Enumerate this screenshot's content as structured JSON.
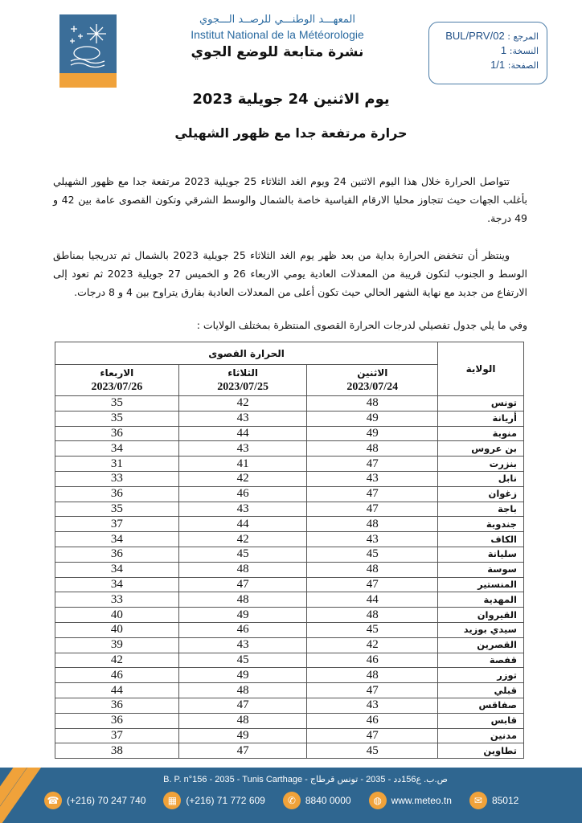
{
  "header": {
    "org_ar": "المعهـــد الوطنـــي للرصــد الـــجوي",
    "org_fr": "Institut National de la Météorologie",
    "bulletin_title": "نشرة متابعة للوضع الجوي",
    "logo_caption_ar": "المعهد الوطني للرصد الجوي",
    "logo_caption_fr": "Institut National de la Météorologie",
    "reference": {
      "label": "المرجع :",
      "value": "BUL/PRV/02"
    },
    "version": {
      "label": "النسخة:",
      "value": "1"
    },
    "page": {
      "label": "الصفحة:",
      "value": "1/1"
    }
  },
  "title_date": "يوم الاثنين 24 جويلية 2023",
  "subtitle": "حرارة مرتفعة جدا مع ظهور الشهيلي",
  "paragraphs": [
    "تتواصل الحرارة خلال هذا اليوم الاثنين 24 ويوم الغد الثلاثاء 25 جويلية 2023 مرتفعة جدا مع ظهور الشهيلي بأغلب الجهات حيث تتجاوز محليا الارقام القياسية خاصة بالشمال والوسط الشرقي وتكون القصوى عامة بين 42 و 49 درجة.",
    "وينتظر أن تنخفض الحرارة بداية من بعد ظهر يوم الغد الثلاثاء 25 جويلية 2023 بالشمال ثم تدريجيا بمناطق الوسط و الجنوب لتكون قريبة من المعدلات العادية يومي الاربعاء 26 و الخميس 27 جويلية 2023 ثم تعود إلى الارتفاع من جديد مع نهاية الشهر الحالي حيث تكون أعلى من المعدلات العادية بفارق يتراوح بين 4 و 8 درجات.",
    "وفي ما يلي جدول تفصيلي لدرجات الحرارة القصوى المنتظرة بمختلف الولايات :"
  ],
  "table": {
    "gov_header": "الولاية",
    "group_header": "الحرارة القصوى",
    "days": [
      {
        "day": "الاثنين",
        "date": "2023/07/24"
      },
      {
        "day": "الثلاثاء",
        "date": "2023/07/25"
      },
      {
        "day": "الاربعاء",
        "date": "2023/07/26"
      }
    ],
    "rows": [
      {
        "gov": "تونس",
        "values": [
          48,
          42,
          35
        ]
      },
      {
        "gov": "أريانة",
        "values": [
          49,
          43,
          35
        ]
      },
      {
        "gov": "منوبة",
        "values": [
          49,
          44,
          36
        ]
      },
      {
        "gov": "بن عروس",
        "values": [
          48,
          43,
          34
        ]
      },
      {
        "gov": "بنزرت",
        "values": [
          47,
          41,
          31
        ]
      },
      {
        "gov": "نابل",
        "values": [
          43,
          42,
          33
        ]
      },
      {
        "gov": "زغوان",
        "values": [
          47,
          46,
          36
        ]
      },
      {
        "gov": "باجة",
        "values": [
          47,
          43,
          35
        ]
      },
      {
        "gov": "جندوبة",
        "values": [
          48,
          44,
          37
        ]
      },
      {
        "gov": "الكاف",
        "values": [
          43,
          42,
          34
        ]
      },
      {
        "gov": "سليانة",
        "values": [
          45,
          45,
          36
        ]
      },
      {
        "gov": "سوسة",
        "values": [
          48,
          48,
          34
        ]
      },
      {
        "gov": "المنستير",
        "values": [
          47,
          47,
          34
        ]
      },
      {
        "gov": "المهدية",
        "values": [
          44,
          48,
          33
        ]
      },
      {
        "gov": "القيروان",
        "values": [
          48,
          49,
          40
        ]
      },
      {
        "gov": "سيدي بوزيد",
        "values": [
          45,
          46,
          40
        ]
      },
      {
        "gov": "القصرين",
        "values": [
          42,
          43,
          39
        ]
      },
      {
        "gov": "قفصة",
        "values": [
          46,
          45,
          42
        ]
      },
      {
        "gov": "توزر",
        "values": [
          48,
          49,
          46
        ]
      },
      {
        "gov": "قبلي",
        "values": [
          47,
          48,
          44
        ]
      },
      {
        "gov": "صفاقس",
        "values": [
          43,
          47,
          36
        ]
      },
      {
        "gov": "قابس",
        "values": [
          46,
          48,
          36
        ]
      },
      {
        "gov": "مدنين",
        "values": [
          47,
          49,
          37
        ]
      },
      {
        "gov": "تطاوين",
        "values": [
          45,
          47,
          38
        ]
      }
    ]
  },
  "footer": {
    "address": "B. P. n°156 - 2035 - Tunis Carthage - ص.ب. ع156دد - 2035 - تونس قرطاج",
    "contacts": [
      {
        "icon": "phone-icon",
        "text": "(+216) 70 247 740"
      },
      {
        "icon": "fax-icon",
        "text": "(+216) 71 772 609"
      },
      {
        "icon": "call-center-icon",
        "text": "8840 0000"
      },
      {
        "icon": "globe-icon",
        "text": "www.meteo.tn"
      },
      {
        "icon": "sms-icon",
        "text": "85012"
      }
    ]
  },
  "colors": {
    "brand_blue": "#2f6690",
    "accent_orange": "#f0a23a",
    "text_blue": "#2a6aa0"
  }
}
